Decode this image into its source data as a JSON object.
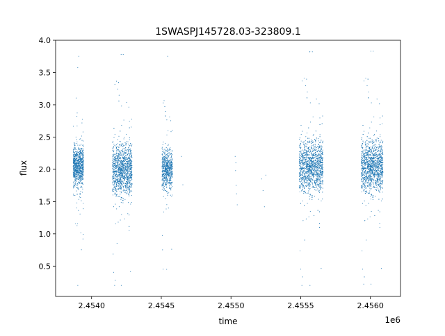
{
  "chart_data": {
    "type": "scatter",
    "title": "1SWASPJ145728.03-323809.1",
    "xlabel": "time",
    "ylabel": "flux",
    "x_offset_label": "1e6",
    "xlim": [
      2453742,
      2456216
    ],
    "ylim": [
      0.03,
      4.0
    ],
    "x_ticks": [
      2454000,
      2454500,
      2455000,
      2455500,
      2456000
    ],
    "x_tick_labels": [
      "2.4540",
      "2.4545",
      "2.4550",
      "2.4555",
      "2.4560"
    ],
    "y_ticks": [
      0.5,
      1.0,
      1.5,
      2.0,
      2.5,
      3.0,
      3.5,
      4.0
    ],
    "y_tick_labels": [
      "0.5",
      "1.0",
      "1.5",
      "2.0",
      "2.5",
      "3.0",
      "3.5",
      "4.0"
    ],
    "grid": false,
    "marker_color": "#1f77b4",
    "series": [
      {
        "name": "",
        "clusters": [
          {
            "x_range": [
              2453868,
              2453942
            ],
            "y_center": 2.05,
            "y_spread": 0.25,
            "y_min": 0.2,
            "y_max": 3.75,
            "n": 900
          },
          {
            "x_range": [
              2454150,
              2454290
            ],
            "y_center": 2.0,
            "y_spread": 0.32,
            "y_min": 0.2,
            "y_max": 3.78,
            "n": 1400
          },
          {
            "x_range": [
              2454505,
              2454580
            ],
            "y_center": 2.0,
            "y_spread": 0.25,
            "y_min": 0.45,
            "y_max": 3.75,
            "n": 700
          },
          {
            "x_range": [
              2455490,
              2455660
            ],
            "y_center": 2.05,
            "y_spread": 0.32,
            "y_min": 0.2,
            "y_max": 3.82,
            "n": 1700
          },
          {
            "x_range": [
              2455935,
              2456090
            ],
            "y_center": 2.05,
            "y_spread": 0.32,
            "y_min": 0.22,
            "y_max": 3.83,
            "n": 1600
          }
        ],
        "isolated_points": [
          [
            2454645,
            2.2
          ],
          [
            2454655,
            1.76
          ],
          [
            2455030,
            2.2
          ],
          [
            2455035,
            2.1
          ],
          [
            2455033,
            1.98
          ],
          [
            2455037,
            1.75
          ],
          [
            2455040,
            1.62
          ],
          [
            2455045,
            1.45
          ],
          [
            2455220,
            1.85
          ],
          [
            2455230,
            1.67
          ],
          [
            2455240,
            1.42
          ],
          [
            2455250,
            1.91
          ]
        ]
      }
    ]
  }
}
